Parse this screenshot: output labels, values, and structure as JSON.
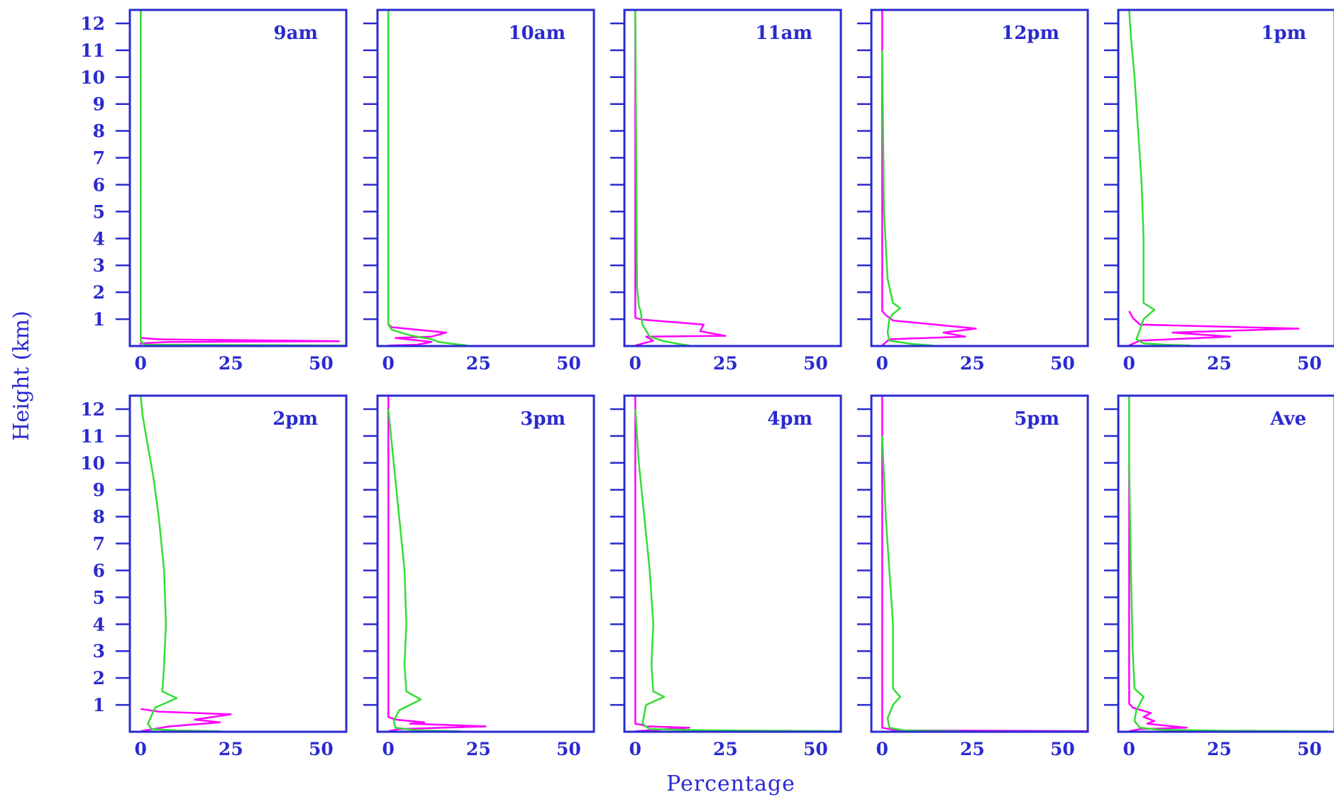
{
  "colors": {
    "axis": "#2a2ad0",
    "text": "#2a2ad0",
    "series_magenta": "#ff00ff",
    "series_green": "#33dd33"
  },
  "chart_data": {
    "type": "line",
    "layout": "small-multiples 2 rows x 5 columns",
    "title": "",
    "xlabel": "Percentage",
    "ylabel": "Height (km)",
    "xlim": [
      -3,
      57
    ],
    "ylim": [
      0,
      12.5
    ],
    "x_ticks": [
      0,
      25,
      50
    ],
    "x_tick_labels": [
      "0",
      "25",
      "50"
    ],
    "y_ticks": [
      1,
      2,
      3,
      4,
      5,
      6,
      7,
      8,
      9,
      10,
      11,
      12
    ],
    "y_tick_labels": [
      "1",
      "2",
      "3",
      "4",
      "5",
      "6",
      "7",
      "8",
      "9",
      "10",
      "11",
      "12"
    ],
    "grid": false,
    "legend": "none",
    "panels": [
      {
        "title": "9am",
        "series": [
          {
            "color": "magenta",
            "x": [
              0,
              0,
              8,
              55,
              5,
              0,
              0
            ],
            "y": [
              0.05,
              0.1,
              0.15,
              0.18,
              0.25,
              0.3,
              12.5
            ]
          },
          {
            "color": "green",
            "x": [
              57,
              1,
              0,
              0
            ],
            "y": [
              0.02,
              0.05,
              0.2,
              12.5
            ]
          }
        ]
      },
      {
        "title": "10am",
        "series": [
          {
            "color": "magenta",
            "x": [
              0,
              8,
              12,
              2,
              12,
              16,
              1,
              0,
              0
            ],
            "y": [
              0.02,
              0.05,
              0.15,
              0.3,
              0.35,
              0.5,
              0.7,
              0.8,
              12.5
            ]
          },
          {
            "color": "green",
            "x": [
              22,
              18,
              14,
              12,
              6,
              1,
              0,
              0
            ],
            "y": [
              0.02,
              0.08,
              0.15,
              0.25,
              0.4,
              0.6,
              0.8,
              12.5
            ]
          }
        ]
      },
      {
        "title": "11am",
        "series": [
          {
            "color": "magenta",
            "x": [
              0,
              5,
              3,
              25,
              20,
              18,
              19,
              2,
              0,
              0
            ],
            "y": [
              0.02,
              0.2,
              0.35,
              0.38,
              0.5,
              0.55,
              0.8,
              0.98,
              1.05,
              12.5
            ]
          },
          {
            "color": "green",
            "x": [
              15,
              12,
              8,
              4,
              2,
              1.5,
              1,
              0.5,
              0
            ],
            "y": [
              0.02,
              0.08,
              0.18,
              0.35,
              0.8,
              1.3,
              1.5,
              2.2,
              12.5
            ]
          }
        ]
      },
      {
        "title": "12pm",
        "series": [
          {
            "color": "magenta",
            "x": [
              0,
              2,
              23,
              17,
              26,
              3,
              1,
              0,
              0
            ],
            "y": [
              0.02,
              0.25,
              0.35,
              0.5,
              0.65,
              0.95,
              1.15,
              1.3,
              12.5
            ]
          },
          {
            "color": "green",
            "x": [
              14,
              8,
              2,
              1.5,
              2,
              3,
              5,
              3,
              1.5,
              0.5,
              0
            ],
            "y": [
              0.02,
              0.08,
              0.2,
              0.5,
              1,
              1.2,
              1.4,
              1.6,
              2.5,
              5,
              11
            ]
          }
        ]
      },
      {
        "title": "1pm",
        "series": [
          {
            "color": "magenta",
            "x": [
              0,
              3,
              28,
              12,
              47,
              3,
              1,
              0
            ],
            "y": [
              0.02,
              0.2,
              0.35,
              0.5,
              0.65,
              0.8,
              1.05,
              1.3
            ]
          },
          {
            "color": "green",
            "x": [
              17,
              10,
              4,
              2,
              3,
              4,
              7,
              4,
              4,
              4,
              3.5,
              2.5,
              1.5,
              0.5,
              0
            ],
            "y": [
              0.02,
              0.05,
              0.1,
              0.25,
              0.6,
              1,
              1.35,
              1.6,
              2,
              4,
              6,
              8,
              10,
              11.5,
              12.5
            ]
          }
        ]
      },
      {
        "title": "2pm",
        "series": [
          {
            "color": "magenta",
            "x": [
              0,
              8,
              22,
              15,
              25,
              5,
              0
            ],
            "y": [
              0.02,
              0.2,
              0.35,
              0.45,
              0.65,
              0.75,
              0.85
            ]
          },
          {
            "color": "green",
            "x": [
              22,
              10,
              3,
              2,
              4,
              10,
              6,
              6.5,
              7,
              6.5,
              5,
              3.5,
              1.5,
              0.5,
              0
            ],
            "y": [
              0.02,
              0.05,
              0.1,
              0.3,
              0.9,
              1.25,
              1.5,
              2.5,
              4,
              6,
              8,
              9.5,
              11,
              11.8,
              12.5
            ]
          }
        ]
      },
      {
        "title": "3pm",
        "series": [
          {
            "color": "magenta",
            "x": [
              0,
              3,
              27,
              6,
              10,
              2,
              0,
              0
            ],
            "y": [
              0.02,
              0.1,
              0.2,
              0.3,
              0.35,
              0.45,
              0.55,
              12.5
            ]
          },
          {
            "color": "green",
            "x": [
              20,
              8,
              2,
              1.5,
              3,
              9,
              5,
              4.5,
              5,
              4.5,
              3,
              1.5,
              0
            ],
            "y": [
              0.02,
              0.05,
              0.15,
              0.4,
              0.8,
              1.2,
              1.5,
              2.5,
              4,
              6,
              8,
              10,
              12
            ]
          }
        ]
      },
      {
        "title": "4pm",
        "series": [
          {
            "color": "magenta",
            "x": [
              0,
              15,
              3,
              2,
              0,
              0
            ],
            "y": [
              0.02,
              0.15,
              0.2,
              0.25,
              0.3,
              12.5
            ]
          },
          {
            "color": "green",
            "x": [
              60,
              22,
              4,
              2,
              3,
              8,
              5,
              4.5,
              5,
              4,
              2.5,
              1,
              0
            ],
            "y": [
              0.02,
              0.05,
              0.1,
              0.3,
              1,
              1.3,
              1.5,
              2.5,
              4,
              6,
              8,
              10,
              12
            ]
          }
        ]
      },
      {
        "title": "5pm",
        "series": [
          {
            "color": "magenta",
            "x": [
              60,
              4,
              0,
              0,
              0
            ],
            "y": [
              0.02,
              0.05,
              0.15,
              0.25,
              12.5
            ]
          },
          {
            "color": "green",
            "x": [
              22,
              6,
              2,
              1.5,
              3,
              5,
              3,
              3,
              3,
              2,
              1,
              0
            ],
            "y": [
              0.02,
              0.05,
              0.15,
              0.5,
              1,
              1.3,
              1.6,
              2.5,
              4,
              6,
              8,
              11
            ]
          }
        ]
      },
      {
        "title": "Ave",
        "series": [
          {
            "color": "magenta",
            "x": [
              0,
              3,
              16,
              5,
              7,
              4,
              6,
              1,
              0,
              0
            ],
            "y": [
              0.02,
              0.1,
              0.15,
              0.3,
              0.4,
              0.55,
              0.7,
              0.9,
              1.05,
              12.5
            ]
          },
          {
            "color": "green",
            "x": [
              55,
              25,
              8,
              3,
              1.5,
              2,
              4,
              1.5,
              1,
              0.5,
              0,
              0
            ],
            "y": [
              0.02,
              0.04,
              0.08,
              0.15,
              0.4,
              0.8,
              1.3,
              1.6,
              3,
              6,
              10,
              12.5
            ]
          }
        ]
      }
    ]
  }
}
